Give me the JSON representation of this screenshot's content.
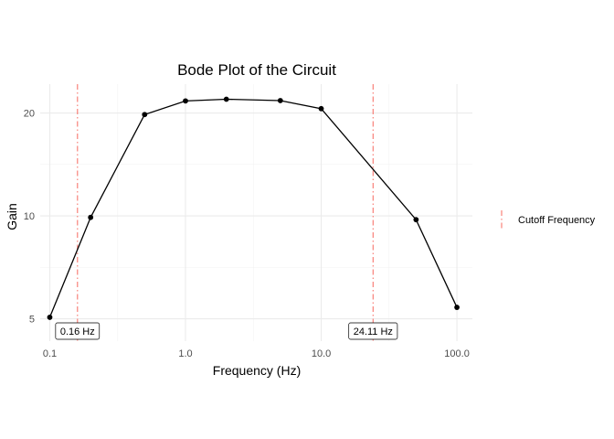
{
  "chart_data": {
    "type": "line",
    "title": "Bode Plot of the Circuit",
    "xlabel": "Frequency (Hz)",
    "ylabel": "Gain",
    "x_scale": "log10",
    "y_scale": "log10",
    "xlim": [
      0.085,
      130
    ],
    "ylim": [
      4.3,
      24.3
    ],
    "x_ticks": [
      0.1,
      1,
      10,
      100
    ],
    "x_tick_labels": [
      "0.1",
      "1.0",
      "10.0",
      "100.0"
    ],
    "y_ticks": [
      5,
      10,
      20
    ],
    "y_tick_labels": [
      "5",
      "10",
      "20"
    ],
    "grid": true,
    "series": [
      {
        "color": "#000000",
        "x": [
          0.1,
          0.2,
          0.5,
          1,
          2,
          5,
          10,
          50,
          100
        ],
        "y": [
          5.05,
          9.9,
          19.8,
          21.7,
          21.95,
          21.75,
          20.6,
          9.75,
          5.4
        ]
      }
    ],
    "cutoff_lines": [
      {
        "x": 0.16,
        "label": "0.16 Hz"
      },
      {
        "x": 24.11,
        "label": "24.11 Hz"
      }
    ],
    "cutoff_color": "#f8766d",
    "legend": {
      "position": "right",
      "entries": [
        {
          "label": "Cutoff Frequency",
          "style": "dot-dash"
        }
      ]
    }
  }
}
